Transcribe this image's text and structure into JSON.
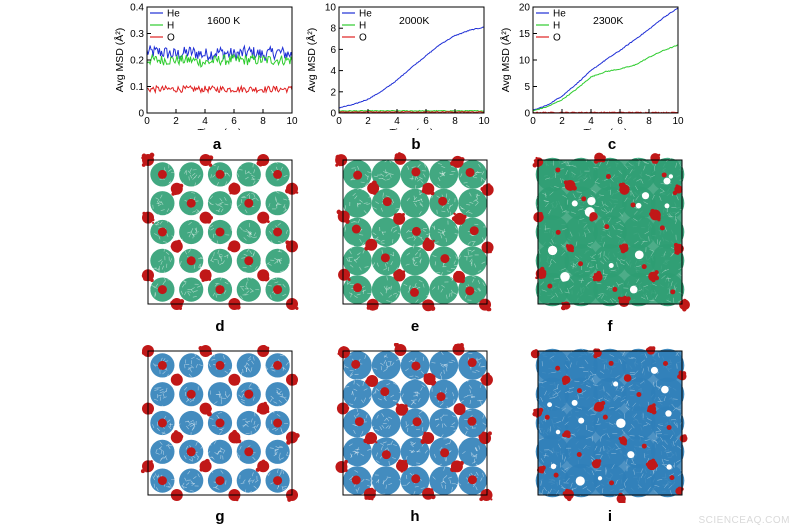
{
  "chart_data": [
    {
      "type": "line",
      "panel": "a",
      "annotation": "1600 K",
      "xlabel": "Time (ps)",
      "ylabel": "Avg MSD (Å²)",
      "xlim": [
        0,
        10
      ],
      "ylim": [
        0,
        0.4
      ],
      "xticks": [
        "0",
        "2",
        "4",
        "6",
        "8",
        "10"
      ],
      "yticks": [
        "0",
        "0.1",
        "0.2",
        "0.3",
        "0.4"
      ],
      "legend_position": "top-left",
      "grid": false,
      "x": [
        0,
        1,
        2,
        3,
        4,
        5,
        6,
        7,
        8,
        9,
        10
      ],
      "series": [
        {
          "name": "He",
          "color": "#1f2fd6",
          "values": [
            0.23,
            0.23,
            0.22,
            0.23,
            0.22,
            0.23,
            0.22,
            0.23,
            0.22,
            0.23,
            0.22
          ]
        },
        {
          "name": "H",
          "color": "#2ecc2e",
          "values": [
            0.2,
            0.2,
            0.2,
            0.2,
            0.19,
            0.2,
            0.2,
            0.2,
            0.2,
            0.2,
            0.2
          ]
        },
        {
          "name": "O",
          "color": "#e02020",
          "values": [
            0.09,
            0.09,
            0.09,
            0.09,
            0.09,
            0.09,
            0.09,
            0.09,
            0.09,
            0.09,
            0.09
          ]
        }
      ]
    },
    {
      "type": "line",
      "panel": "b",
      "annotation": "2000K",
      "xlabel": "Time (ps)",
      "ylabel": "Avg MSD (Å²)",
      "xlim": [
        0,
        10
      ],
      "ylim": [
        0,
        10
      ],
      "xticks": [
        "0",
        "2",
        "4",
        "6",
        "8",
        "10"
      ],
      "yticks": [
        "0",
        "2",
        "4",
        "6",
        "8",
        "10"
      ],
      "legend_position": "top-left",
      "grid": false,
      "x": [
        0,
        1,
        2,
        3,
        4,
        5,
        6,
        7,
        8,
        9,
        10
      ],
      "series": [
        {
          "name": "He",
          "color": "#1f2fd6",
          "values": [
            0.5,
            0.8,
            1.3,
            2.1,
            3.1,
            4.3,
            5.4,
            6.5,
            7.3,
            7.8,
            8.1
          ]
        },
        {
          "name": "H",
          "color": "#2ecc2e",
          "values": [
            0.2,
            0.2,
            0.2,
            0.2,
            0.2,
            0.2,
            0.2,
            0.2,
            0.2,
            0.2,
            0.2
          ]
        },
        {
          "name": "O",
          "color": "#e02020",
          "values": [
            0.1,
            0.1,
            0.1,
            0.1,
            0.1,
            0.1,
            0.1,
            0.1,
            0.1,
            0.1,
            0.1
          ]
        }
      ]
    },
    {
      "type": "line",
      "panel": "c",
      "annotation": "2300K",
      "xlabel": "Time (ps)",
      "ylabel": "Avg MSD (Å²)",
      "xlim": [
        0,
        10
      ],
      "ylim": [
        0,
        20
      ],
      "xticks": [
        "0",
        "2",
        "4",
        "6",
        "8",
        "10"
      ],
      "yticks": [
        "0",
        "5",
        "10",
        "15",
        "20"
      ],
      "legend_position": "top-left",
      "grid": false,
      "x": [
        0,
        1,
        2,
        3,
        4,
        5,
        6,
        7,
        8,
        9,
        10
      ],
      "series": [
        {
          "name": "He",
          "color": "#1f2fd6",
          "values": [
            0.5,
            1.5,
            3.2,
            5.5,
            8.0,
            10.0,
            11.8,
            13.8,
            15.8,
            18.0,
            19.8
          ]
        },
        {
          "name": "H",
          "color": "#2ecc2e",
          "values": [
            0.4,
            1.2,
            2.5,
            4.5,
            6.8,
            7.8,
            8.3,
            9.0,
            10.5,
            11.8,
            12.8
          ]
        },
        {
          "name": "O",
          "color": "#e02020",
          "values": [
            0.1,
            0.1,
            0.1,
            0.1,
            0.1,
            0.1,
            0.1,
            0.1,
            0.1,
            0.1,
            0.1
          ]
        }
      ]
    }
  ],
  "panels": {
    "a": "a",
    "b": "b",
    "c": "c",
    "d": "d",
    "e": "e",
    "f": "f",
    "g": "g",
    "h": "h",
    "i": "i"
  },
  "snapshots": {
    "d": {
      "style": "green",
      "disorder": "low"
    },
    "e": {
      "style": "green",
      "disorder": "medium"
    },
    "f": {
      "style": "green",
      "disorder": "high"
    },
    "g": {
      "style": "blue",
      "disorder": "low"
    },
    "h": {
      "style": "blue",
      "disorder": "medium"
    },
    "i": {
      "style": "blue",
      "disorder": "high"
    }
  },
  "colors": {
    "green_atoms": "#2e9e73",
    "blue_atoms": "#2f7fb8",
    "red_clusters": "#c01818"
  },
  "watermark": "SCIENCEAQ.COM"
}
